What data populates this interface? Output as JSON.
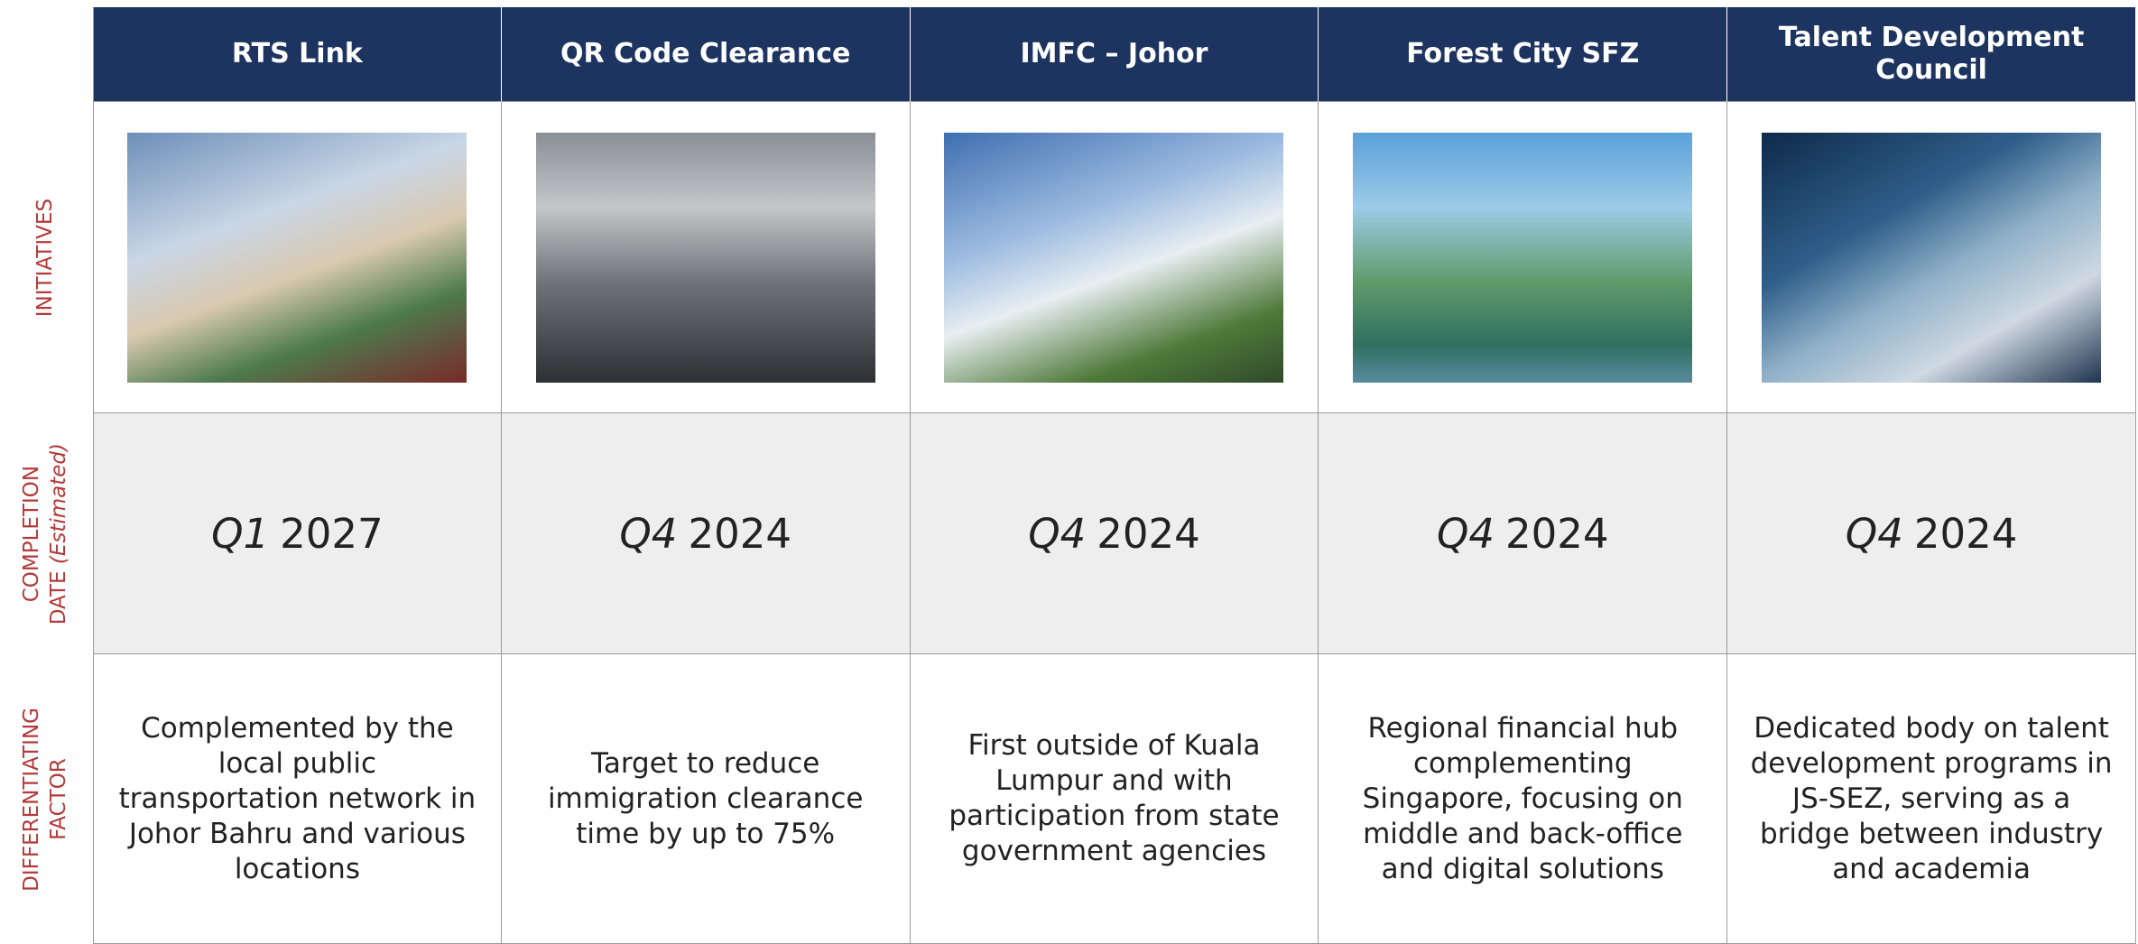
{
  "row_labels": {
    "initiatives": "INITIATIVES",
    "completion": "COMPLETION",
    "date": "DATE",
    "estimated": "(Estimated)",
    "differentiating": "DIFFERENTIATING",
    "factor": "FACTOR"
  },
  "columns": [
    {
      "title": [
        "RTS Link"
      ],
      "quarter": "Q1",
      "year": "2027",
      "description": [
        "Complemented by the",
        "local public",
        "transportation network in",
        "Johor Bahru and various",
        "locations"
      ]
    },
    {
      "title": [
        "QR Code Clearance"
      ],
      "quarter": "Q4",
      "year": "2024",
      "description": [
        "Target to reduce",
        "immigration clearance",
        "time by up to 75%"
      ]
    },
    {
      "title": [
        "IMFC – Johor"
      ],
      "quarter": "Q4",
      "year": "2024",
      "description": [
        "First outside of Kuala",
        "Lumpur and with",
        "participation from state",
        "government agencies"
      ]
    },
    {
      "title": [
        "Forest City SFZ"
      ],
      "quarter": "Q4",
      "year": "2024",
      "description": [
        "Regional financial hub",
        "complementing",
        "Singapore, focusing on",
        "middle and back-office",
        "and digital solutions"
      ]
    },
    {
      "title": [
        "Talent Development",
        "Council"
      ],
      "quarter": "Q4",
      "year": "2024",
      "description": [
        "Dedicated body on talent",
        "development programs in",
        "JS-SEZ, serving as a",
        "bridge between industry",
        "and academia"
      ]
    }
  ]
}
